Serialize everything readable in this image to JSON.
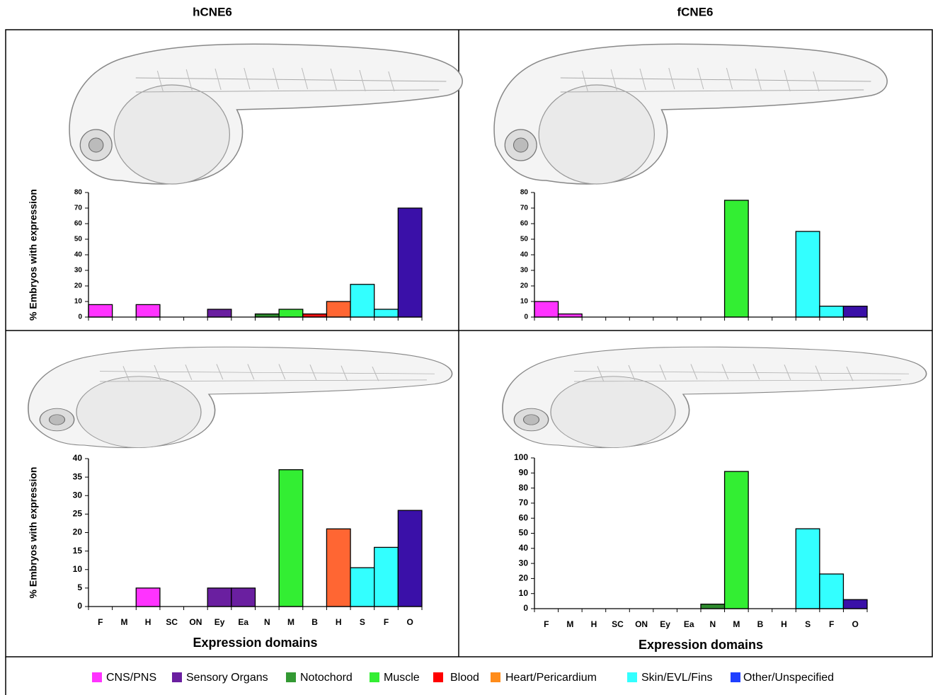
{
  "figure": {
    "column_titles": [
      "hCNE6",
      "fCNE6"
    ],
    "legend": [
      {
        "label": "CNS/PNS",
        "color": "#ff33ff"
      },
      {
        "label": "Sensory Organs",
        "color": "#6a1fa0"
      },
      {
        "label": "Notochord",
        "color": "#339933"
      },
      {
        "label": "Muscle",
        "color": "#33ee33"
      },
      {
        "label": "Blood",
        "color": "#ff0000"
      },
      {
        "label": "Heart/Pericardium",
        "color": "#ff8c1a"
      },
      {
        "label": "Skin/EVL/Fins",
        "color": "#33ffff"
      },
      {
        "label": "Other/Unspecified",
        "color": "#1f3fff"
      }
    ]
  },
  "chart_data": [
    {
      "type": "bar",
      "y_label": "% Embryos with expression",
      "values": [
        8,
        0,
        8,
        0,
        0,
        5,
        0,
        2,
        5,
        2,
        10,
        21,
        5,
        70
      ],
      "bar_colors": [
        "#ff33ff",
        "#ff33ff",
        "#ff33ff",
        "#ff33ff",
        "#6a1fa0",
        "#6a1fa0",
        "#6a1fa0",
        "#2e8b2e",
        "#33ee33",
        "#ee1111",
        "#ff6633",
        "#33ffff",
        "#33ffff",
        "#3a10a8"
      ],
      "ylim": [
        0,
        80
      ],
      "yticks": [
        0,
        10,
        20,
        30,
        40,
        50,
        60,
        70,
        80
      ]
    },
    {
      "type": "bar",
      "values": [
        10,
        2,
        0,
        0,
        0,
        0,
        0,
        0,
        75,
        0,
        0,
        55,
        7,
        7
      ],
      "bar_colors": [
        "#ff33ff",
        "#ff33ff",
        "#ff33ff",
        "#ff33ff",
        "#6a1fa0",
        "#6a1fa0",
        "#6a1fa0",
        "#2e8b2e",
        "#33ee33",
        "#ee1111",
        "#ff6633",
        "#33ffff",
        "#33ffff",
        "#3a10a8"
      ],
      "ylim": [
        0,
        80
      ],
      "yticks": [
        0,
        10,
        20,
        30,
        40,
        50,
        60,
        70,
        80
      ]
    },
    {
      "type": "bar",
      "y_label": "% Embryos with expression",
      "x_label": "Expression domains",
      "categories": [
        "F",
        "M",
        "H",
        "SC",
        "ON",
        "Ey",
        "Ea",
        "N",
        "M",
        "B",
        "H",
        "S",
        "F",
        "O"
      ],
      "values": [
        0,
        0,
        5,
        0,
        0,
        5,
        5,
        0,
        37,
        0,
        21,
        10.5,
        16,
        26
      ],
      "bar_colors": [
        "#ff33ff",
        "#ff33ff",
        "#ff33ff",
        "#ff33ff",
        "#6a1fa0",
        "#6a1fa0",
        "#6a1fa0",
        "#2e8b2e",
        "#33ee33",
        "#ee1111",
        "#ff6633",
        "#33ffff",
        "#33ffff",
        "#3a10a8"
      ],
      "ylim": [
        0,
        40
      ],
      "yticks": [
        0,
        5,
        10,
        15,
        20,
        25,
        30,
        35,
        40
      ]
    },
    {
      "type": "bar",
      "x_label": "Expression domains",
      "categories": [
        "F",
        "M",
        "H",
        "SC",
        "ON",
        "Ey",
        "Ea",
        "N",
        "M",
        "B",
        "H",
        "S",
        "F",
        "O"
      ],
      "values": [
        0,
        0,
        0,
        0,
        0,
        0,
        0,
        3,
        91,
        0,
        0,
        53,
        23,
        6
      ],
      "bar_colors": [
        "#ff33ff",
        "#ff33ff",
        "#ff33ff",
        "#ff33ff",
        "#6a1fa0",
        "#6a1fa0",
        "#6a1fa0",
        "#2e8b2e",
        "#33ee33",
        "#ee1111",
        "#ff6633",
        "#33ffff",
        "#33ffff",
        "#3a10a8"
      ],
      "ylim": [
        0,
        100
      ],
      "yticks": [
        0,
        10,
        20,
        30,
        40,
        50,
        60,
        70,
        80,
        90,
        100
      ]
    }
  ]
}
